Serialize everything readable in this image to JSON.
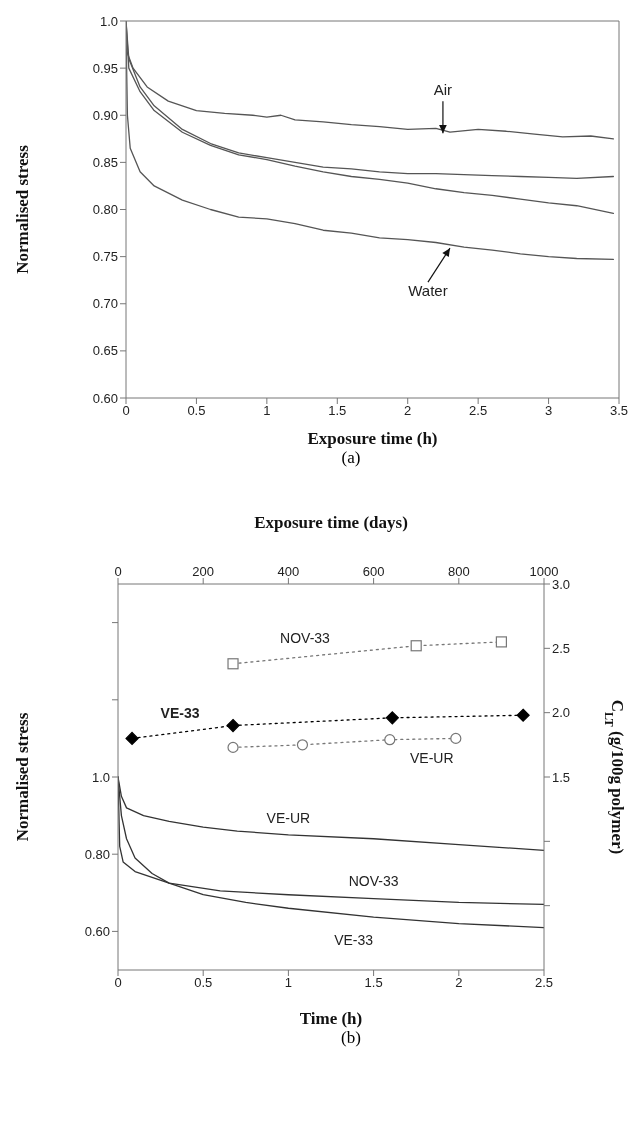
{
  "chart_data": [
    {
      "type": "line",
      "xlabel": "Exposure time (h)",
      "ylabel": "Normalised stress",
      "xlim": [
        0,
        3.5
      ],
      "xticks": [
        0,
        0.5,
        1,
        1.5,
        2,
        2.5,
        3,
        3.5
      ],
      "ylim": [
        0.6,
        1.0
      ],
      "yticks": [
        {
          "value": 0.6,
          "label": "0.60"
        },
        0.65,
        {
          "value": 0.7,
          "label": "0.70"
        },
        0.75,
        {
          "value": 0.8,
          "label": "0.80"
        },
        0.85,
        {
          "value": 0.9,
          "label": "0.90"
        },
        0.95,
        {
          "value": 1.0,
          "label": "1.0"
        }
      ],
      "annotations": [
        {
          "text": "Air",
          "x": 2.25,
          "y": 0.881
        },
        {
          "text": "Water",
          "x": 2.3,
          "y": 0.759
        },
        "(a)"
      ],
      "series": [
        {
          "color": "#555555",
          "x": [
            0,
            0.05,
            0.15,
            0.3,
            0.5,
            0.7,
            0.9,
            1.0,
            1.1,
            1.2,
            1.4,
            1.6,
            1.8,
            2.0,
            2.2,
            2.3,
            2.5,
            2.7,
            2.9,
            3.1,
            3.3,
            3.46
          ],
          "values": [
            0.97,
            0.95,
            0.93,
            0.915,
            0.905,
            0.902,
            0.9,
            0.898,
            0.9,
            0.895,
            0.893,
            0.89,
            0.888,
            0.885,
            0.886,
            0.882,
            0.885,
            0.883,
            0.88,
            0.877,
            0.878,
            0.875
          ]
        },
        {
          "color": "#555555",
          "x": [
            0,
            0.02,
            0.1,
            0.2,
            0.4,
            0.6,
            0.8,
            1.0,
            1.2,
            1.4,
            1.6,
            1.8,
            2.0,
            2.2,
            2.4,
            2.6,
            2.8,
            3.0,
            3.2,
            3.46
          ],
          "values": [
            1.0,
            0.96,
            0.93,
            0.91,
            0.885,
            0.87,
            0.86,
            0.855,
            0.85,
            0.845,
            0.843,
            0.84,
            0.838,
            0.838,
            0.837,
            0.836,
            0.835,
            0.834,
            0.833,
            0.835
          ]
        },
        {
          "color": "#555555",
          "x": [
            0,
            0.02,
            0.1,
            0.2,
            0.4,
            0.6,
            0.8,
            1.0,
            1.2,
            1.4,
            1.6,
            1.8,
            2.0,
            2.2,
            2.4,
            2.6,
            2.8,
            3.0,
            3.2,
            3.46
          ],
          "values": [
            1.0,
            0.95,
            0.925,
            0.905,
            0.882,
            0.868,
            0.858,
            0.853,
            0.846,
            0.84,
            0.835,
            0.832,
            0.828,
            0.822,
            0.818,
            0.815,
            0.811,
            0.807,
            0.804,
            0.796
          ]
        },
        {
          "color": "#555555",
          "x": [
            0,
            0.01,
            0.03,
            0.1,
            0.2,
            0.4,
            0.6,
            0.8,
            1.0,
            1.2,
            1.4,
            1.6,
            1.8,
            2.0,
            2.2,
            2.4,
            2.6,
            2.8,
            3.0,
            3.2,
            3.46
          ],
          "values": [
            0.99,
            0.9,
            0.865,
            0.84,
            0.825,
            0.81,
            0.8,
            0.792,
            0.79,
            0.785,
            0.778,
            0.775,
            0.77,
            0.768,
            0.765,
            0.76,
            0.757,
            0.753,
            0.75,
            0.748,
            0.747
          ]
        }
      ]
    },
    {
      "type": "line",
      "xlabel": "Exposure time (days)",
      "x2label": "Time (h)",
      "ylabel": "Normalised stress",
      "y2label": "C$_{LT}$ (g/100g polymer)",
      "xlim": [
        0,
        1000
      ],
      "xticks": [
        0,
        200,
        400,
        600,
        800,
        1000
      ],
      "x2lim": [
        0,
        2.5
      ],
      "x2ticks": [
        0,
        0.5,
        1,
        1.5,
        2,
        2.5
      ],
      "ylim": [
        0.5,
        1.5
      ],
      "yticks": [
        {
          "value": 0.6,
          "label": "0.60"
        },
        {
          "value": 0.8,
          "label": "0.80"
        },
        {
          "value": 1.0,
          "label": "1.0"
        },
        {
          "value": 1.2,
          "label": null
        },
        {
          "value": 1.4,
          "label": null
        }
      ],
      "y2lim": [
        0,
        3
      ],
      "y2ticks": [
        {
          "value": 0.5,
          "label": null
        },
        {
          "value": 1.0,
          "label": null
        },
        {
          "value": 1.5,
          "label": "1.5"
        },
        {
          "value": 2.0,
          "label": "2.0"
        },
        {
          "value": 2.5,
          "label": "2.5"
        },
        {
          "value": 3.0,
          "label": "3.0"
        }
      ],
      "annotations": [
        "(b)"
      ],
      "series": [
        {
          "name": "VE-UR",
          "color": "#333333",
          "axis": "x2",
          "x": [
            0,
            0.02,
            0.05,
            0.15,
            0.3,
            0.5,
            0.7,
            1.0,
            1.5,
            2.0,
            2.5
          ],
          "values": [
            1.0,
            0.95,
            0.92,
            0.9,
            0.885,
            0.87,
            0.86,
            0.85,
            0.84,
            0.825,
            0.81
          ]
        },
        {
          "name": "NOV-33",
          "color": "#333333",
          "axis": "x2",
          "x": [
            0,
            0.01,
            0.03,
            0.1,
            0.3,
            0.6,
            1.0,
            1.5,
            2.0,
            2.5
          ],
          "values": [
            1.0,
            0.82,
            0.78,
            0.755,
            0.725,
            0.705,
            0.695,
            0.685,
            0.675,
            0.67
          ]
        },
        {
          "name": "VE-33",
          "color": "#333333",
          "axis": "x2",
          "x": [
            0,
            0.02,
            0.05,
            0.1,
            0.2,
            0.3,
            0.5,
            0.75,
            1.0,
            1.5,
            2.0,
            2.5
          ],
          "values": [
            1.0,
            0.9,
            0.84,
            0.79,
            0.75,
            0.725,
            0.695,
            0.675,
            0.66,
            0.637,
            0.62,
            0.61
          ]
        },
        {
          "name": "NOV-33",
          "color": "#777777",
          "axis": "y2",
          "marker": "square",
          "line_style": "dotted",
          "x": [
            270,
            700,
            900
          ],
          "values": [
            2.38,
            2.52,
            2.55
          ]
        },
        {
          "name": "VE-33",
          "color": "#000000",
          "axis": "y2",
          "marker": "diamond",
          "line_style": "dotted",
          "x": [
            33,
            270,
            644,
            951
          ],
          "values": [
            1.8,
            1.9,
            1.96,
            1.98
          ]
        },
        {
          "name": "VE-UR",
          "color": "#777777",
          "axis": "y2",
          "marker": "circle",
          "line_style": "dotted",
          "x": [
            270,
            433,
            638,
            793
          ],
          "values": [
            1.73,
            1.75,
            1.79,
            1.8
          ]
        }
      ]
    }
  ]
}
